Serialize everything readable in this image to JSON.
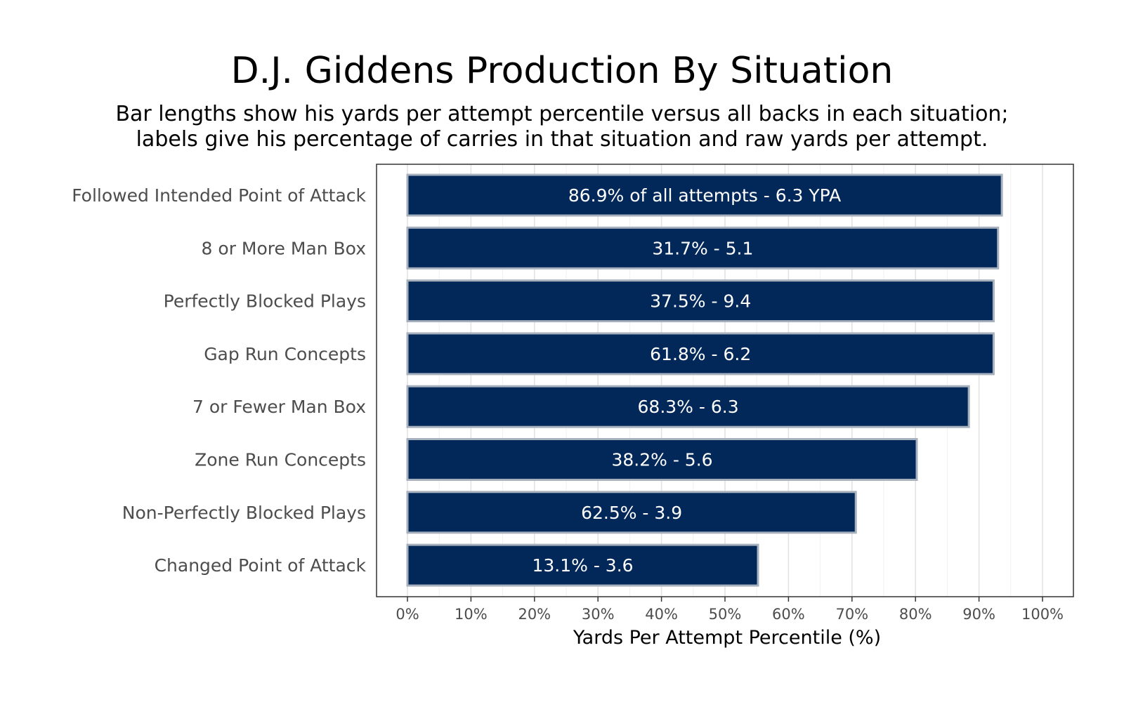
{
  "chart_data": {
    "type": "bar",
    "orientation": "horizontal",
    "title": "D.J. Giddens Production By Situation",
    "subtitle": [
      "Bar lengths show his yards per attempt percentile versus all backs in each situation;",
      "labels give his percentage of carries in that situation and raw yards per attempt."
    ],
    "xlabel": "Yards Per Attempt Percentile (%)",
    "ylabel": "",
    "xlim": [
      0,
      100
    ],
    "x_ticks": [
      "0%",
      "10%",
      "20%",
      "30%",
      "40%",
      "50%",
      "60%",
      "70%",
      "80%",
      "90%",
      "100%"
    ],
    "grid": true,
    "categories": [
      "Followed Intended Point of Attack",
      "8 or More Man Box",
      "Perfectly Blocked Plays",
      "Gap Run Concepts",
      "7 or Fewer Man Box",
      "Zone Run Concepts",
      "Non-Perfectly Blocked Plays",
      "Changed Point of Attack"
    ],
    "values": [
      93.6,
      93.0,
      92.3,
      92.3,
      88.4,
      80.2,
      70.6,
      55.2
    ],
    "labels": [
      "86.9% of all attempts - 6.3 YPA",
      "31.7% - 5.1",
      "37.5% - 9.4",
      "61.8% - 6.2",
      "68.3% - 6.3",
      "38.2% - 5.6",
      "62.5% - 3.9",
      "13.1% - 3.6"
    ],
    "colors": {
      "bar_fill": "#02285a",
      "bar_stroke": "#a7b0bd",
      "panel_border": "#333333",
      "grid_major": "#e3e3e3",
      "grid_minor": "#f1f1f1"
    }
  }
}
